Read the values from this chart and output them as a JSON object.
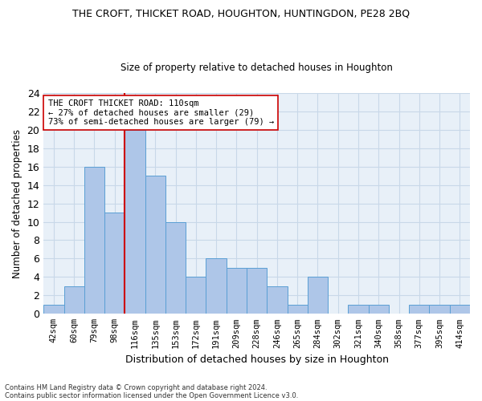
{
  "title": "THE CROFT, THICKET ROAD, HOUGHTON, HUNTINGDON, PE28 2BQ",
  "subtitle": "Size of property relative to detached houses in Houghton",
  "xlabel": "Distribution of detached houses by size in Houghton",
  "ylabel": "Number of detached properties",
  "categories": [
    "42sqm",
    "60sqm",
    "79sqm",
    "98sqm",
    "116sqm",
    "135sqm",
    "153sqm",
    "172sqm",
    "191sqm",
    "209sqm",
    "228sqm",
    "246sqm",
    "265sqm",
    "284sqm",
    "302sqm",
    "321sqm",
    "340sqm",
    "358sqm",
    "377sqm",
    "395sqm",
    "414sqm"
  ],
  "values": [
    1,
    3,
    16,
    11,
    20,
    15,
    10,
    4,
    6,
    5,
    5,
    3,
    1,
    4,
    0,
    1,
    1,
    0,
    1,
    1,
    1
  ],
  "bar_color": "#aec6e8",
  "bar_edgecolor": "#5a9fd4",
  "vline_x": 3.5,
  "vline_color": "#cc0000",
  "ylim": [
    0,
    24
  ],
  "yticks": [
    0,
    2,
    4,
    6,
    8,
    10,
    12,
    14,
    16,
    18,
    20,
    22,
    24
  ],
  "annotation_text": "THE CROFT THICKET ROAD: 110sqm\n← 27% of detached houses are smaller (29)\n73% of semi-detached houses are larger (79) →",
  "annotation_box_color": "#ffffff",
  "annotation_box_edgecolor": "#cc0000",
  "footer_line1": "Contains HM Land Registry data © Crown copyright and database right 2024.",
  "footer_line2": "Contains public sector information licensed under the Open Government Licence v3.0.",
  "grid_color": "#c8d8e8",
  "background_color": "#e8f0f8"
}
